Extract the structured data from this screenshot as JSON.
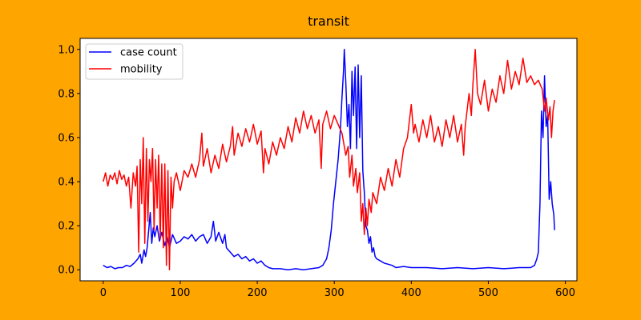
{
  "colors": {
    "figure_background": "#FFA500",
    "axes_background": "#FFFFFF",
    "case_count": "#0000FF",
    "mobility": "#FF0000"
  },
  "chart_data": {
    "type": "line",
    "title": "transit",
    "xlabel": "",
    "ylabel": "",
    "xlim": [
      -30,
      615
    ],
    "ylim": [
      -0.05,
      1.05
    ],
    "xticks": [
      0,
      100,
      200,
      300,
      400,
      500,
      600
    ],
    "yticks": [
      0.0,
      0.2,
      0.4,
      0.6,
      0.8,
      1.0
    ],
    "grid": false,
    "legend": {
      "placement": "top-left",
      "entries": [
        "case count",
        "mobility"
      ]
    },
    "series": [
      {
        "name": "case count",
        "color": "#0000FF",
        "points": [
          [
            0,
            0.02
          ],
          [
            5,
            0.01
          ],
          [
            10,
            0.015
          ],
          [
            15,
            0.005
          ],
          [
            20,
            0.01
          ],
          [
            25,
            0.01
          ],
          [
            30,
            0.02
          ],
          [
            35,
            0.015
          ],
          [
            40,
            0.03
          ],
          [
            45,
            0.05
          ],
          [
            48,
            0.07
          ],
          [
            50,
            0.03
          ],
          [
            53,
            0.09
          ],
          [
            55,
            0.06
          ],
          [
            57,
            0.1
          ],
          [
            59,
            0.18
          ],
          [
            61,
            0.26
          ],
          [
            63,
            0.12
          ],
          [
            65,
            0.19
          ],
          [
            67,
            0.15
          ],
          [
            70,
            0.2
          ],
          [
            73,
            0.13
          ],
          [
            76,
            0.17
          ],
          [
            80,
            0.11
          ],
          [
            83,
            0.15
          ],
          [
            86,
            0.1
          ],
          [
            90,
            0.16
          ],
          [
            95,
            0.12
          ],
          [
            100,
            0.13
          ],
          [
            105,
            0.15
          ],
          [
            110,
            0.14
          ],
          [
            115,
            0.16
          ],
          [
            120,
            0.13
          ],
          [
            125,
            0.15
          ],
          [
            130,
            0.16
          ],
          [
            135,
            0.12
          ],
          [
            140,
            0.15
          ],
          [
            143,
            0.22
          ],
          [
            146,
            0.13
          ],
          [
            150,
            0.17
          ],
          [
            155,
            0.12
          ],
          [
            158,
            0.16
          ],
          [
            160,
            0.1
          ],
          [
            165,
            0.08
          ],
          [
            170,
            0.06
          ],
          [
            175,
            0.07
          ],
          [
            180,
            0.05
          ],
          [
            185,
            0.06
          ],
          [
            190,
            0.04
          ],
          [
            195,
            0.05
          ],
          [
            200,
            0.03
          ],
          [
            205,
            0.04
          ],
          [
            210,
            0.02
          ],
          [
            215,
            0.01
          ],
          [
            220,
            0.005
          ],
          [
            230,
            0.005
          ],
          [
            240,
            0.0
          ],
          [
            250,
            0.005
          ],
          [
            260,
            0.0
          ],
          [
            270,
            0.005
          ],
          [
            280,
            0.01
          ],
          [
            285,
            0.02
          ],
          [
            290,
            0.05
          ],
          [
            293,
            0.1
          ],
          [
            296,
            0.18
          ],
          [
            299,
            0.3
          ],
          [
            302,
            0.4
          ],
          [
            305,
            0.5
          ],
          [
            308,
            0.64
          ],
          [
            310,
            0.78
          ],
          [
            312,
            0.9
          ],
          [
            313,
            1.0
          ],
          [
            315,
            0.85
          ],
          [
            317,
            0.65
          ],
          [
            319,
            0.75
          ],
          [
            321,
            0.55
          ],
          [
            323,
            0.9
          ],
          [
            325,
            0.7
          ],
          [
            327,
            0.92
          ],
          [
            329,
            0.55
          ],
          [
            331,
            0.93
          ],
          [
            333,
            0.6
          ],
          [
            335,
            0.88
          ],
          [
            337,
            0.45
          ],
          [
            339,
            0.35
          ],
          [
            341,
            0.2
          ],
          [
            343,
            0.18
          ],
          [
            345,
            0.12
          ],
          [
            347,
            0.15
          ],
          [
            349,
            0.08
          ],
          [
            351,
            0.1
          ],
          [
            353,
            0.06
          ],
          [
            355,
            0.05
          ],
          [
            360,
            0.04
          ],
          [
            365,
            0.03
          ],
          [
            370,
            0.025
          ],
          [
            375,
            0.02
          ],
          [
            380,
            0.01
          ],
          [
            390,
            0.015
          ],
          [
            400,
            0.01
          ],
          [
            420,
            0.01
          ],
          [
            440,
            0.005
          ],
          [
            460,
            0.01
          ],
          [
            480,
            0.005
          ],
          [
            500,
            0.01
          ],
          [
            520,
            0.005
          ],
          [
            540,
            0.01
          ],
          [
            555,
            0.01
          ],
          [
            560,
            0.02
          ],
          [
            563,
            0.05
          ],
          [
            565,
            0.08
          ],
          [
            567,
            0.3
          ],
          [
            569,
            0.72
          ],
          [
            571,
            0.6
          ],
          [
            573,
            0.88
          ],
          [
            575,
            0.65
          ],
          [
            577,
            0.7
          ],
          [
            579,
            0.32
          ],
          [
            581,
            0.4
          ],
          [
            583,
            0.3
          ],
          [
            585,
            0.25
          ],
          [
            586,
            0.18
          ]
        ]
      },
      {
        "name": "mobility",
        "color": "#FF0000",
        "points": [
          [
            0,
            0.4
          ],
          [
            3,
            0.44
          ],
          [
            6,
            0.38
          ],
          [
            9,
            0.43
          ],
          [
            12,
            0.41
          ],
          [
            15,
            0.44
          ],
          [
            18,
            0.39
          ],
          [
            21,
            0.45
          ],
          [
            24,
            0.41
          ],
          [
            27,
            0.43
          ],
          [
            30,
            0.38
          ],
          [
            33,
            0.42
          ],
          [
            36,
            0.28
          ],
          [
            39,
            0.44
          ],
          [
            42,
            0.38
          ],
          [
            44,
            0.47
          ],
          [
            46,
            0.08
          ],
          [
            48,
            0.5
          ],
          [
            50,
            0.3
          ],
          [
            52,
            0.6
          ],
          [
            54,
            0.12
          ],
          [
            56,
            0.55
          ],
          [
            58,
            0.22
          ],
          [
            60,
            0.5
          ],
          [
            62,
            0.4
          ],
          [
            64,
            0.55
          ],
          [
            66,
            0.18
          ],
          [
            68,
            0.5
          ],
          [
            70,
            0.28
          ],
          [
            72,
            0.52
          ],
          [
            74,
            0.14
          ],
          [
            76,
            0.48
          ],
          [
            78,
            0.1
          ],
          [
            80,
            0.48
          ],
          [
            82,
            0.02
          ],
          [
            84,
            0.45
          ],
          [
            86,
            0.0
          ],
          [
            88,
            0.42
          ],
          [
            90,
            0.28
          ],
          [
            92,
            0.4
          ],
          [
            95,
            0.44
          ],
          [
            100,
            0.36
          ],
          [
            105,
            0.45
          ],
          [
            110,
            0.42
          ],
          [
            115,
            0.48
          ],
          [
            120,
            0.42
          ],
          [
            125,
            0.5
          ],
          [
            128,
            0.62
          ],
          [
            130,
            0.47
          ],
          [
            135,
            0.55
          ],
          [
            140,
            0.44
          ],
          [
            145,
            0.52
          ],
          [
            150,
            0.46
          ],
          [
            155,
            0.57
          ],
          [
            160,
            0.49
          ],
          [
            165,
            0.56
          ],
          [
            168,
            0.65
          ],
          [
            170,
            0.52
          ],
          [
            175,
            0.62
          ],
          [
            180,
            0.56
          ],
          [
            185,
            0.64
          ],
          [
            190,
            0.58
          ],
          [
            195,
            0.66
          ],
          [
            200,
            0.57
          ],
          [
            205,
            0.63
          ],
          [
            208,
            0.44
          ],
          [
            210,
            0.55
          ],
          [
            215,
            0.48
          ],
          [
            220,
            0.58
          ],
          [
            225,
            0.52
          ],
          [
            230,
            0.6
          ],
          [
            235,
            0.55
          ],
          [
            240,
            0.65
          ],
          [
            245,
            0.58
          ],
          [
            250,
            0.69
          ],
          [
            255,
            0.62
          ],
          [
            260,
            0.72
          ],
          [
            265,
            0.64
          ],
          [
            270,
            0.7
          ],
          [
            275,
            0.62
          ],
          [
            280,
            0.68
          ],
          [
            283,
            0.46
          ],
          [
            285,
            0.66
          ],
          [
            290,
            0.72
          ],
          [
            295,
            0.64
          ],
          [
            300,
            0.7
          ],
          [
            305,
            0.66
          ],
          [
            310,
            0.62
          ],
          [
            315,
            0.52
          ],
          [
            318,
            0.56
          ],
          [
            320,
            0.42
          ],
          [
            323,
            0.52
          ],
          [
            325,
            0.38
          ],
          [
            328,
            0.46
          ],
          [
            330,
            0.35
          ],
          [
            333,
            0.44
          ],
          [
            335,
            0.22
          ],
          [
            337,
            0.3
          ],
          [
            339,
            0.16
          ],
          [
            341,
            0.28
          ],
          [
            343,
            0.2
          ],
          [
            345,
            0.32
          ],
          [
            348,
            0.26
          ],
          [
            350,
            0.35
          ],
          [
            355,
            0.3
          ],
          [
            360,
            0.42
          ],
          [
            365,
            0.36
          ],
          [
            370,
            0.46
          ],
          [
            375,
            0.38
          ],
          [
            380,
            0.5
          ],
          [
            385,
            0.42
          ],
          [
            390,
            0.55
          ],
          [
            395,
            0.6
          ],
          [
            400,
            0.75
          ],
          [
            403,
            0.62
          ],
          [
            405,
            0.66
          ],
          [
            410,
            0.58
          ],
          [
            415,
            0.68
          ],
          [
            420,
            0.6
          ],
          [
            425,
            0.7
          ],
          [
            430,
            0.58
          ],
          [
            435,
            0.65
          ],
          [
            440,
            0.56
          ],
          [
            445,
            0.68
          ],
          [
            450,
            0.6
          ],
          [
            455,
            0.7
          ],
          [
            460,
            0.58
          ],
          [
            465,
            0.66
          ],
          [
            468,
            0.52
          ],
          [
            470,
            0.65
          ],
          [
            475,
            0.8
          ],
          [
            478,
            0.7
          ],
          [
            480,
            0.84
          ],
          [
            483,
            1.0
          ],
          [
            486,
            0.8
          ],
          [
            490,
            0.75
          ],
          [
            495,
            0.86
          ],
          [
            500,
            0.72
          ],
          [
            505,
            0.82
          ],
          [
            510,
            0.76
          ],
          [
            515,
            0.88
          ],
          [
            520,
            0.8
          ],
          [
            525,
            0.95
          ],
          [
            530,
            0.82
          ],
          [
            535,
            0.9
          ],
          [
            540,
            0.84
          ],
          [
            545,
            0.96
          ],
          [
            550,
            0.85
          ],
          [
            555,
            0.88
          ],
          [
            560,
            0.84
          ],
          [
            565,
            0.86
          ],
          [
            570,
            0.82
          ],
          [
            573,
            0.72
          ],
          [
            575,
            0.78
          ],
          [
            578,
            0.68
          ],
          [
            580,
            0.74
          ],
          [
            582,
            0.6
          ],
          [
            584,
            0.72
          ],
          [
            586,
            0.77
          ]
        ]
      }
    ]
  }
}
